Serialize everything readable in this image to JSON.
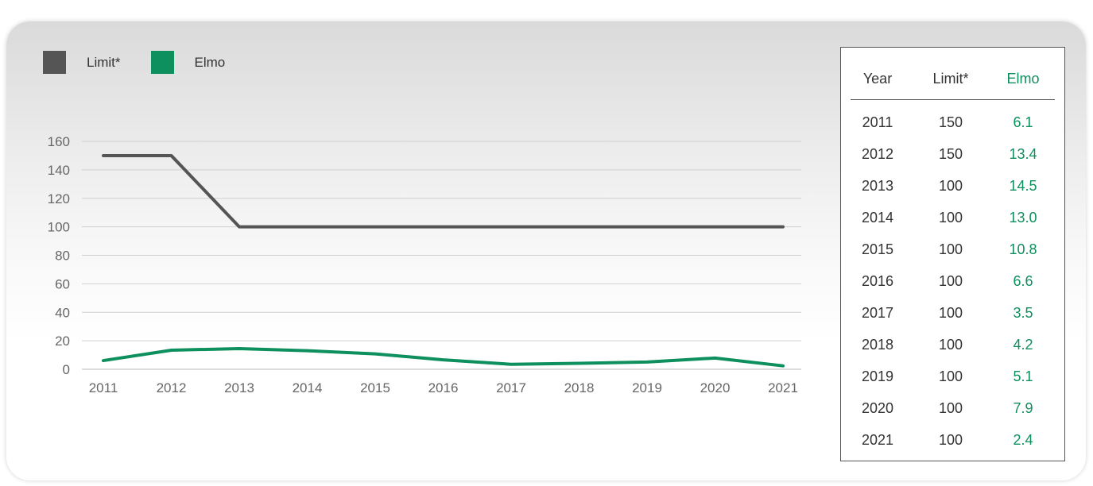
{
  "legend": [
    {
      "label": "Limit*",
      "color": "#555555"
    },
    {
      "label": "Elmo",
      "color": "#0e8f5e"
    }
  ],
  "chart_data": {
    "type": "line",
    "x": [
      "2011",
      "2012",
      "2013",
      "2014",
      "2015",
      "2016",
      "2017",
      "2018",
      "2019",
      "2020",
      "2021"
    ],
    "series": [
      {
        "name": "Limit*",
        "color": "#555555",
        "values": [
          150,
          150,
          100,
          100,
          100,
          100,
          100,
          100,
          100,
          100,
          100
        ]
      },
      {
        "name": "Elmo",
        "color": "#0e8f5e",
        "values": [
          6.1,
          13.4,
          14.5,
          13.0,
          10.8,
          6.6,
          3.5,
          4.2,
          5.1,
          7.9,
          2.4
        ]
      }
    ],
    "yticks": [
      0,
      20,
      40,
      60,
      80,
      100,
      120,
      140,
      160
    ],
    "ylim": [
      0,
      160
    ],
    "grid": true,
    "legend_position": "top-left"
  },
  "table": {
    "headers": [
      "Year",
      "Limit*",
      "Elmo"
    ],
    "rows": [
      [
        "2011",
        "150",
        "6.1"
      ],
      [
        "2012",
        "150",
        "13.4"
      ],
      [
        "2013",
        "100",
        "14.5"
      ],
      [
        "2014",
        "100",
        "13.0"
      ],
      [
        "2015",
        "100",
        "10.8"
      ],
      [
        "2016",
        "100",
        "6.6"
      ],
      [
        "2017",
        "100",
        "3.5"
      ],
      [
        "2018",
        "100",
        "4.2"
      ],
      [
        "2019",
        "100",
        "5.1"
      ],
      [
        "2020",
        "100",
        "7.9"
      ],
      [
        "2021",
        "100",
        "2.4"
      ]
    ]
  }
}
